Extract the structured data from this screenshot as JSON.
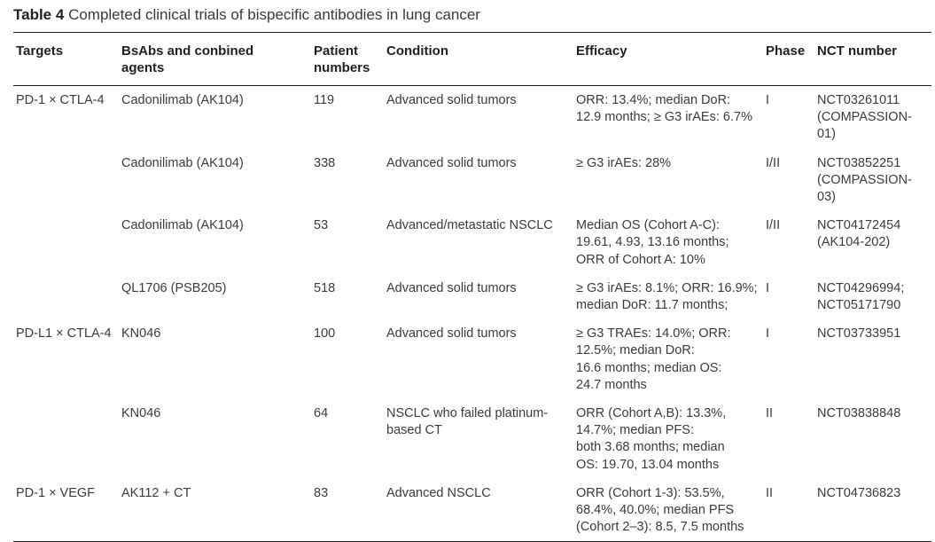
{
  "caption": {
    "label": "Table 4",
    "text": "Completed clinical trials of bispecific antibodies in lung cancer"
  },
  "table": {
    "headers": {
      "targets": "Targets",
      "agents": "BsAbs and conbined\nagents",
      "patients": "Patient\nnumbers",
      "condition": "Condition",
      "efficacy": "Efficacy",
      "phase": "Phase",
      "nct": "NCT number"
    },
    "rows": [
      {
        "targets": "PD-1 × CTLA-4",
        "agents": "Cadonilimab (AK104)",
        "patients": "119",
        "condition": "Advanced solid tumors",
        "efficacy": "ORR: 13.4%; median DoR:\n12.9 months; ≥ G3 irAEs: 6.7%",
        "phase": "I",
        "nct": "NCT03261011\n(COMPASSION-01)"
      },
      {
        "targets": "",
        "agents": "Cadonilimab (AK104)",
        "patients": "338",
        "condition": "Advanced solid tumors",
        "efficacy": "≥ G3 irAEs: 28%",
        "phase": "I/II",
        "nct": "NCT03852251\n(COMPASSION-03)"
      },
      {
        "targets": "",
        "agents": "Cadonilimab (AK104)",
        "patients": "53",
        "condition": "Advanced/metastatic NSCLC",
        "efficacy": "Median OS (Cohort A-C):\n19.61, 4.93, 13.16 months;\nORR of Cohort A: 10%",
        "phase": "I/II",
        "nct": "NCT04172454\n(AK104-202)"
      },
      {
        "targets": "",
        "agents": "QL1706 (PSB205)",
        "patients": "518",
        "condition": "Advanced solid tumors",
        "efficacy": "≥ G3 irAEs: 8.1%; ORR: 16.9%;\nmedian DoR: 11.7 months;",
        "phase": "I",
        "nct": "NCT04296994;\nNCT05171790"
      },
      {
        "targets": "PD-L1 × CTLA-4",
        "agents": "KN046",
        "patients": "100",
        "condition": "Advanced solid tumors",
        "efficacy": "≥ G3 TRAEs: 14.0%; ORR:\n12.5%; median DoR:\n16.6 months; median OS:\n24.7 months",
        "phase": "I",
        "nct": "NCT03733951"
      },
      {
        "targets": "",
        "agents": "KN046",
        "patients": "64",
        "condition": "NSCLC who failed platinum-\nbased CT",
        "efficacy": "ORR (Cohort A,B): 13.3%,\n14.7%; median PFS:\nboth 3.68 months; median\nOS: 19.70, 13.04 months",
        "phase": "II",
        "nct": "NCT03838848"
      },
      {
        "targets": "PD-1 × VEGF",
        "agents": "AK112 + CT",
        "patients": "83",
        "condition": "Advanced NSCLC",
        "efficacy": "ORR (Cohort 1-3): 53.5%,\n68.4%, 40.0%; median PFS\n(Cohort 2–3): 8.5, 7.5 months",
        "phase": "II",
        "nct": "NCT04736823"
      }
    ]
  }
}
